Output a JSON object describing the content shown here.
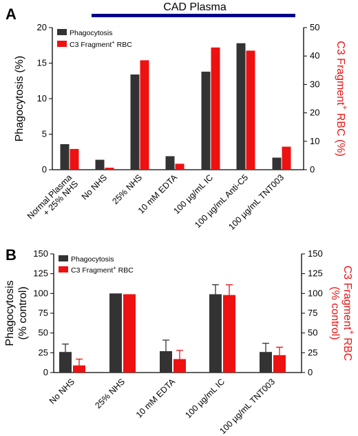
{
  "colors": {
    "phago": "#333333",
    "c3": "#ee1111",
    "bracket": "#00008b",
    "axis": "#000000",
    "rightAxis": "#ee1111"
  },
  "panels": [
    {
      "panel_label": "A",
      "bracket_label": "CAD Plasma",
      "legend": [
        "Phagocytosis",
        "C3 Fragment",
        "+",
        " RBC"
      ],
      "chart_data": {
        "type": "bar",
        "categories": [
          "Normal Plasma\n+ 25% NHS",
          "No NHS",
          "25% NHS",
          "10 mM EDTA",
          "100 µg/mL IC",
          "100 µg/mL Anti-C5",
          "100 µg/mL TNT003"
        ],
        "series": [
          {
            "name": "Phagocytosis",
            "axis": "left",
            "values": [
              3.6,
              1.4,
              13.4,
              1.9,
              13.8,
              17.8,
              1.7
            ]
          },
          {
            "name": "C3 Fragment+ RBC",
            "axis": "right",
            "values": [
              7.3,
              0.7,
              38.5,
              2.1,
              43.0,
              41.9,
              8.1
            ]
          }
        ],
        "ylabel": "Phagocytosis (%)",
        "ylabel_right": [
          "C3 Fragment",
          "+",
          " RBC (%)"
        ],
        "ylim": [
          0,
          20
        ],
        "ylim_right": [
          0,
          50
        ],
        "yticks": [
          "0",
          "5",
          "10",
          "15",
          "20"
        ],
        "yticks_right": [
          "0",
          "10",
          "20",
          "30",
          "40",
          "50"
        ]
      }
    },
    {
      "panel_label": "B",
      "legend": [
        "Phagocytosis",
        "C3 Fragment",
        "+",
        " RBC"
      ],
      "chart_data": {
        "type": "bar",
        "categories": [
          "No NHS",
          "25% NHS",
          "10 mM EDTA",
          "100 µg/mL IC",
          "100 µg/mL TNT003"
        ],
        "series": [
          {
            "name": "Phagocytosis",
            "axis": "left",
            "values": [
              26,
              100,
              27,
              99,
              26
            ],
            "errors": [
              10,
              0,
              14,
              12,
              11
            ]
          },
          {
            "name": "C3 Fragment+ RBC",
            "axis": "right",
            "values": [
              9,
              99,
              17,
              98,
              22
            ],
            "errors": [
              8,
              0,
              11,
              13,
              10
            ]
          }
        ],
        "ylabel": [
          "Phagocytosis",
          "(% control)"
        ],
        "ylabel_right": [
          "C3 Fragment",
          "+",
          " RBC",
          "(% control)"
        ],
        "ylim": [
          0,
          150
        ],
        "ylim_right": [
          0,
          150
        ],
        "yticks": [
          "0",
          "25",
          "50",
          "75",
          "100",
          "125",
          "150"
        ],
        "yticks_right": [
          "0",
          "25",
          "50",
          "75",
          "100",
          "125",
          "150"
        ]
      }
    }
  ]
}
